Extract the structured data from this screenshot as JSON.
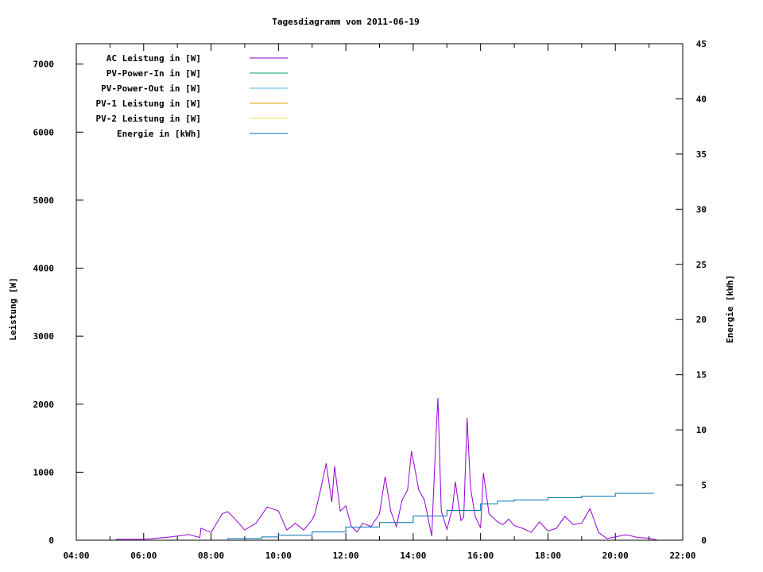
{
  "chart_data": {
    "type": "line",
    "title": "Tagesdiagramm vom 2011-06-19",
    "xlabel": "",
    "ylabel": "Leistung [W]",
    "y2label": "Energie [kWh]",
    "xlim": [
      "04:00",
      "22:00"
    ],
    "ylim": [
      0,
      7300
    ],
    "y2lim": [
      0,
      45
    ],
    "xticks": [
      "04:00",
      "06:00",
      "08:00",
      "10:00",
      "12:00",
      "14:00",
      "16:00",
      "18:00",
      "20:00",
      "22:00"
    ],
    "yticks": [
      0,
      1000,
      2000,
      3000,
      4000,
      5000,
      6000,
      7000
    ],
    "y2ticks": [
      0,
      5,
      10,
      15,
      20,
      25,
      30,
      35,
      40,
      45
    ],
    "grid": false,
    "legend_position": "top-left",
    "series": [
      {
        "name": "AC Leistung in [W]",
        "color": "#9400d3",
        "axis": "y",
        "x": [
          "05:10",
          "06:00",
          "06:10",
          "06:50",
          "07:20",
          "07:40",
          "07:42",
          "08:00",
          "08:20",
          "08:30",
          "08:45",
          "09:00",
          "09:20",
          "09:40",
          "10:00",
          "10:15",
          "10:30",
          "10:45",
          "11:00",
          "11:05",
          "11:15",
          "11:25",
          "11:35",
          "11:40",
          "11:50",
          "12:00",
          "12:10",
          "12:20",
          "12:30",
          "12:45",
          "13:00",
          "13:10",
          "13:20",
          "13:30",
          "13:40",
          "13:50",
          "13:57",
          "14:10",
          "14:20",
          "14:33",
          "14:40",
          "14:44",
          "14:50",
          "15:00",
          "15:10",
          "15:15",
          "15:25",
          "15:30",
          "15:36",
          "15:42",
          "15:50",
          "16:00",
          "16:05",
          "16:15",
          "16:30",
          "16:40",
          "16:50",
          "17:00",
          "17:15",
          "17:30",
          "17:45",
          "18:00",
          "18:15",
          "18:30",
          "18:45",
          "19:00",
          "19:15",
          "19:30",
          "19:45",
          "20:00",
          "20:20",
          "20:40",
          "21:00",
          "21:15"
        ],
        "values": [
          15,
          15,
          20,
          50,
          85,
          40,
          175,
          115,
          390,
          420,
          290,
          150,
          250,
          490,
          430,
          150,
          250,
          150,
          300,
          390,
          740,
          1130,
          560,
          1090,
          430,
          505,
          200,
          120,
          250,
          200,
          390,
          935,
          430,
          200,
          585,
          740,
          1310,
          740,
          590,
          60,
          1440,
          2090,
          430,
          160,
          470,
          860,
          290,
          340,
          1800,
          780,
          360,
          180,
          990,
          390,
          270,
          230,
          310,
          215,
          175,
          115,
          270,
          135,
          175,
          350,
          230,
          250,
          465,
          115,
          25,
          50,
          80,
          40,
          30,
          0
        ]
      },
      {
        "name": "PV-Power-In in [W]",
        "color": "#009e73",
        "axis": "y",
        "x": [],
        "values": []
      },
      {
        "name": "PV-Power-Out in [W]",
        "color": "#56b4e9",
        "axis": "y",
        "x": [],
        "values": []
      },
      {
        "name": "PV-1 Leistung in [W]",
        "color": "#e69f00",
        "axis": "y",
        "x": [],
        "values": []
      },
      {
        "name": "PV-2 Leistung in [W]",
        "color": "#f0e442",
        "axis": "y",
        "x": [],
        "values": []
      },
      {
        "name": "Energie in [kWh]",
        "color": "#0072b2",
        "axis": "y2",
        "x": [
          "07:05",
          "08:30",
          "09:30",
          "10:00",
          "11:00",
          "12:00",
          "13:00",
          "14:00",
          "15:00",
          "16:00",
          "16:30",
          "17:00",
          "18:00",
          "19:00",
          "20:00",
          "21:09"
        ],
        "values": [
          0,
          0.15,
          0.3,
          0.45,
          0.75,
          1.2,
          1.6,
          2.2,
          2.7,
          3.3,
          3.55,
          3.65,
          3.85,
          4.0,
          4.25,
          4.25
        ]
      }
    ]
  }
}
